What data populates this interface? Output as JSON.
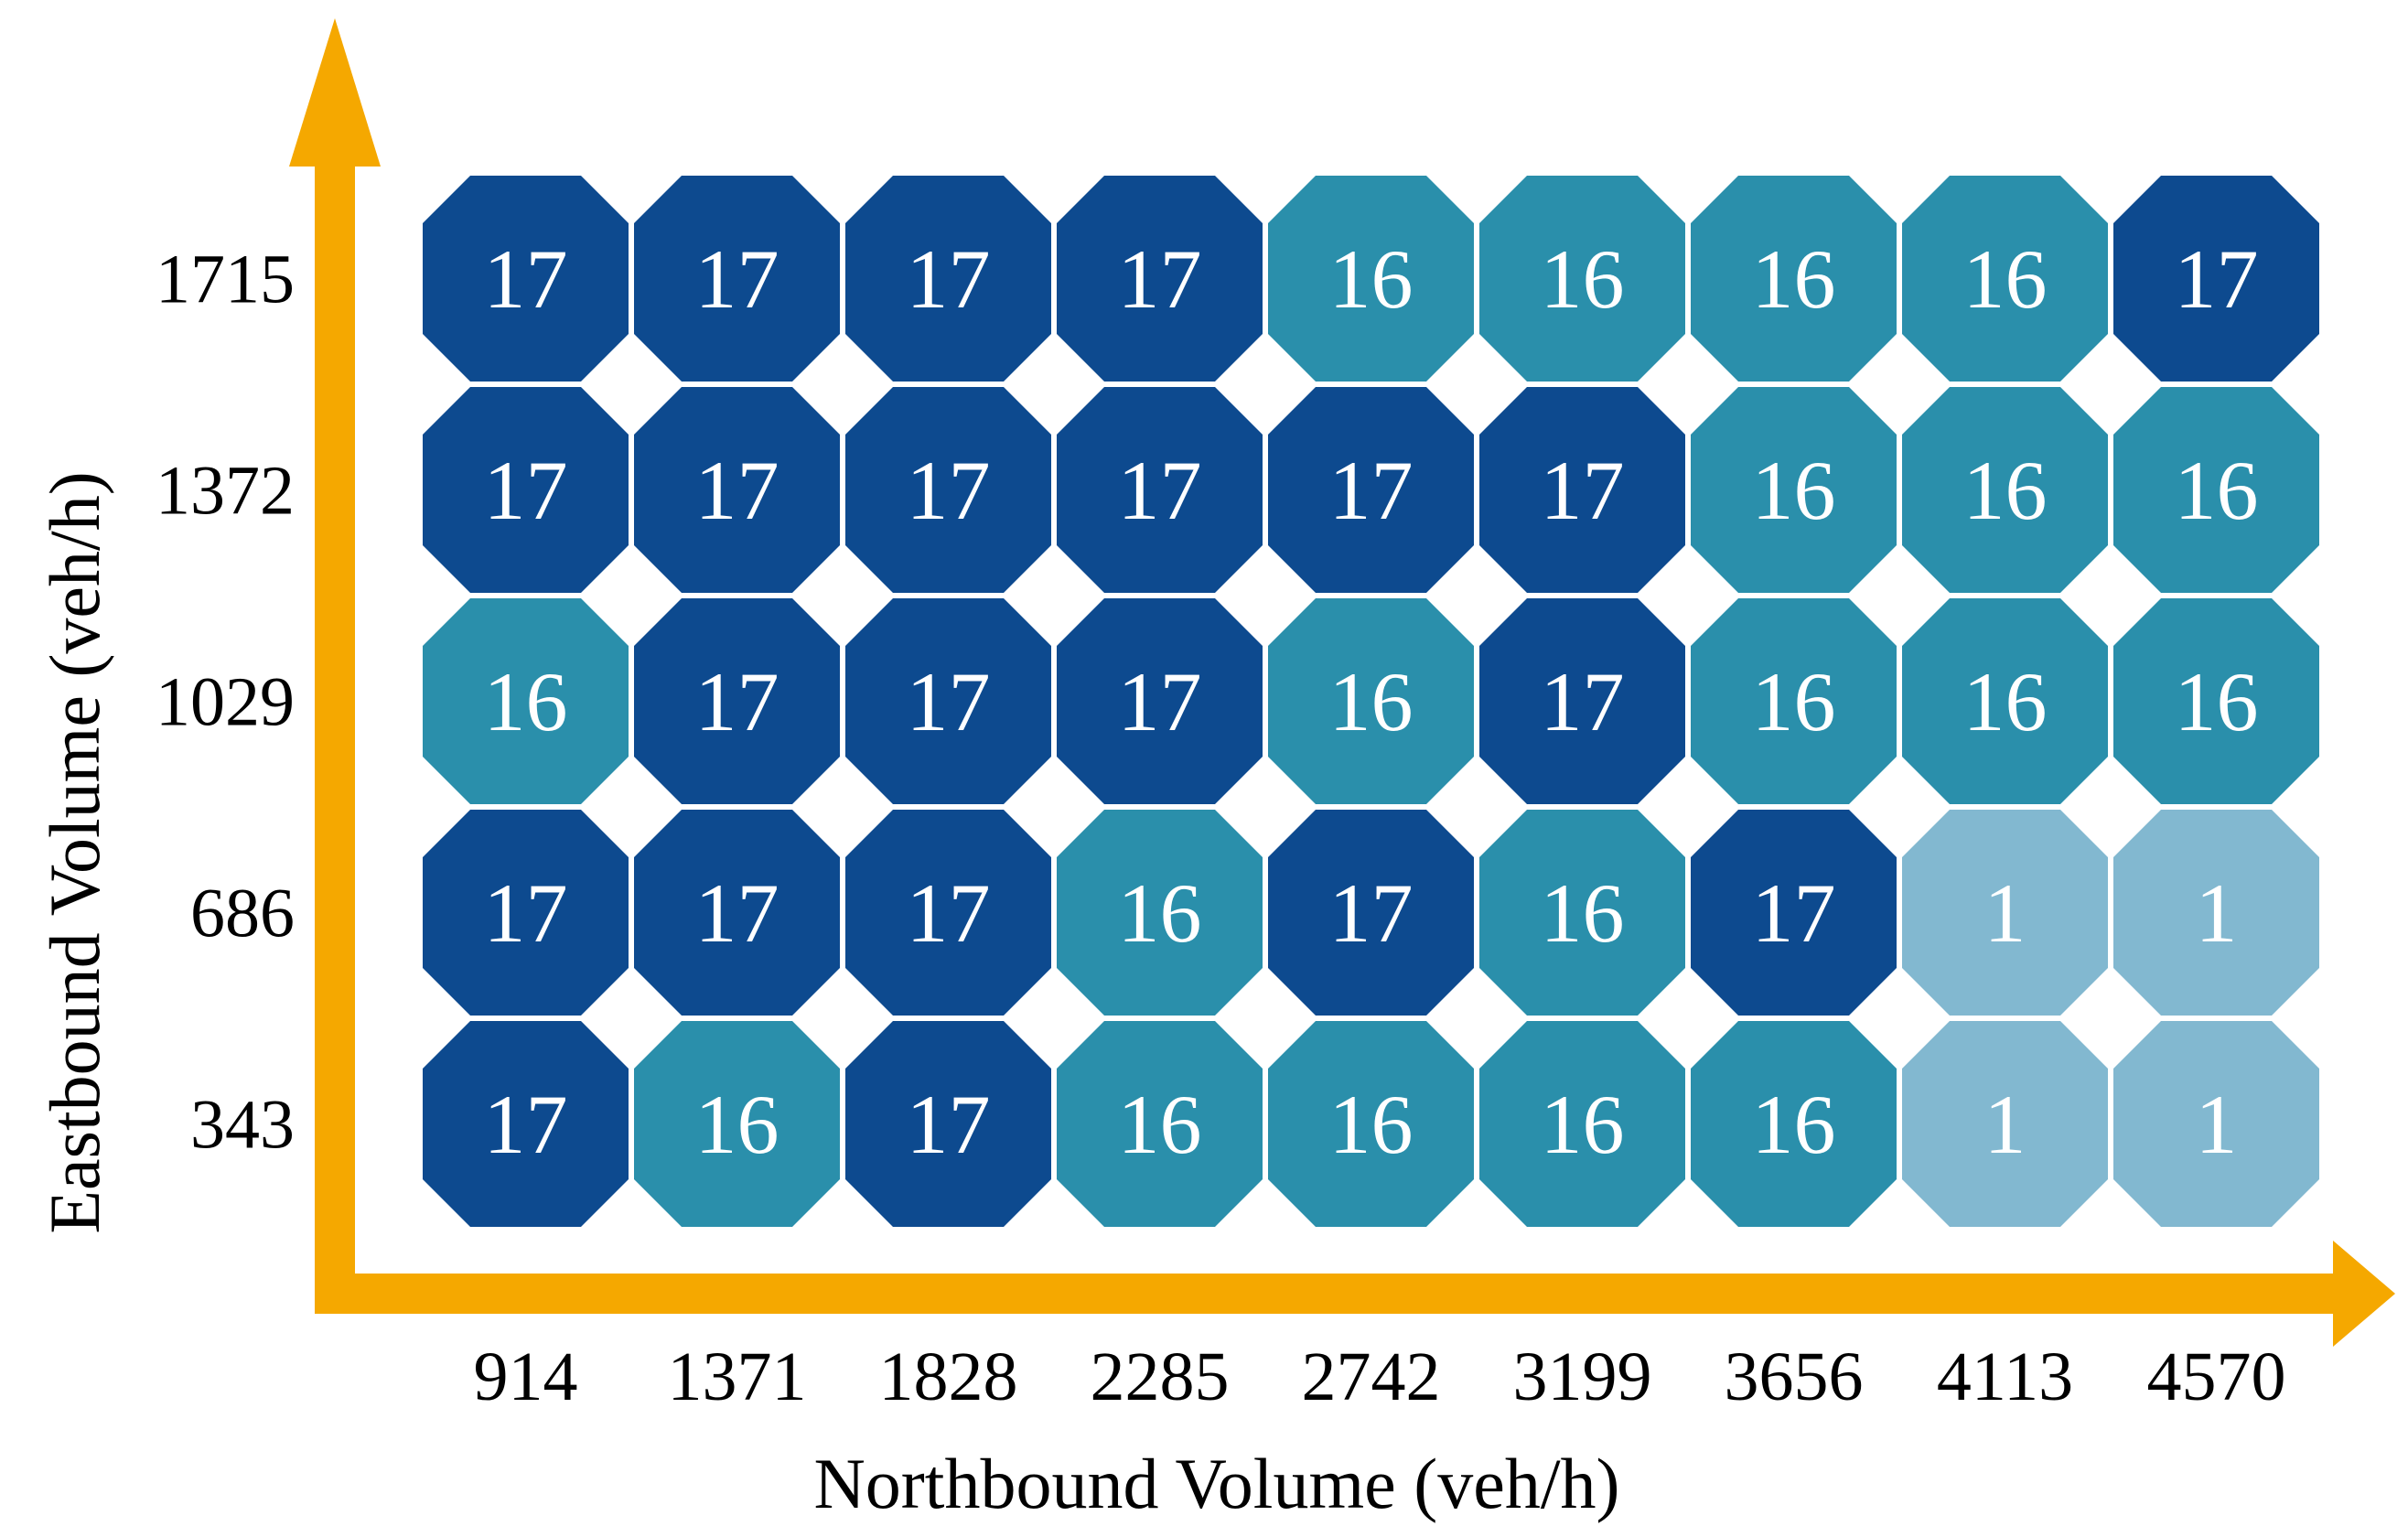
{
  "chart_data": {
    "type": "heatmap",
    "title": "",
    "xlabel": "Northbound Volume (veh/h)",
    "ylabel": "Eastbound Volume (veh/h)",
    "x_categories": [
      "914",
      "1371",
      "1828",
      "2285",
      "2742",
      "3199",
      "3656",
      "4113",
      "4570"
    ],
    "y_categories": [
      "1715",
      "1372",
      "1029",
      "686",
      "343"
    ],
    "values": [
      [
        17,
        17,
        17,
        17,
        16,
        16,
        16,
        16,
        17
      ],
      [
        17,
        17,
        17,
        17,
        17,
        17,
        16,
        16,
        16
      ],
      [
        16,
        17,
        17,
        17,
        16,
        17,
        16,
        16,
        16
      ],
      [
        17,
        17,
        17,
        16,
        17,
        16,
        17,
        1,
        1
      ],
      [
        17,
        16,
        17,
        16,
        16,
        16,
        16,
        1,
        1
      ]
    ],
    "cell_colors": {
      "17": "#0d4a8f",
      "16": "#2a8fab",
      "1": "#82b8d0"
    },
    "axis_color": "#f5a800",
    "cell_text_color": "#ffffff"
  }
}
